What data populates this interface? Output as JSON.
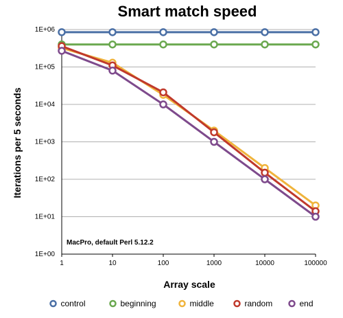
{
  "chart_data": {
    "type": "line",
    "title": "Smart match speed",
    "xlabel": "Array scale",
    "ylabel": "Iterations per 5 seconds",
    "x_scale": "log",
    "y_scale": "log",
    "x": [
      1,
      10,
      100,
      1000,
      10000,
      100000
    ],
    "x_tick_labels": [
      "1",
      "10",
      "100",
      "1000",
      "10000",
      "100000"
    ],
    "y_ticks": [
      1,
      10,
      100,
      1000,
      10000,
      100000,
      1000000
    ],
    "y_tick_labels": [
      "1E+00",
      "1E+01",
      "1E+02",
      "1E+03",
      "1E+04",
      "1E+05",
      "1E+06"
    ],
    "ylim": [
      1,
      1000000
    ],
    "grid": "horizontal",
    "legend_position": "bottom",
    "annotation": "MacPro, default Perl 5.12.2",
    "series": [
      {
        "name": "control",
        "color": "#4a6fa5",
        "values": [
          850000,
          850000,
          850000,
          850000,
          850000,
          850000
        ]
      },
      {
        "name": "beginning",
        "color": "#6aa84f",
        "values": [
          400000,
          400000,
          400000,
          400000,
          400000,
          400000
        ]
      },
      {
        "name": "middle",
        "color": "#f0b43c",
        "values": [
          320000,
          130000,
          18000,
          2000,
          200,
          20
        ]
      },
      {
        "name": "random",
        "color": "#c0392b",
        "values": [
          360000,
          110000,
          21000,
          1800,
          150,
          14
        ]
      },
      {
        "name": "end",
        "color": "#7e4a8c",
        "values": [
          270000,
          80000,
          10000,
          1000,
          100,
          10
        ]
      }
    ]
  }
}
